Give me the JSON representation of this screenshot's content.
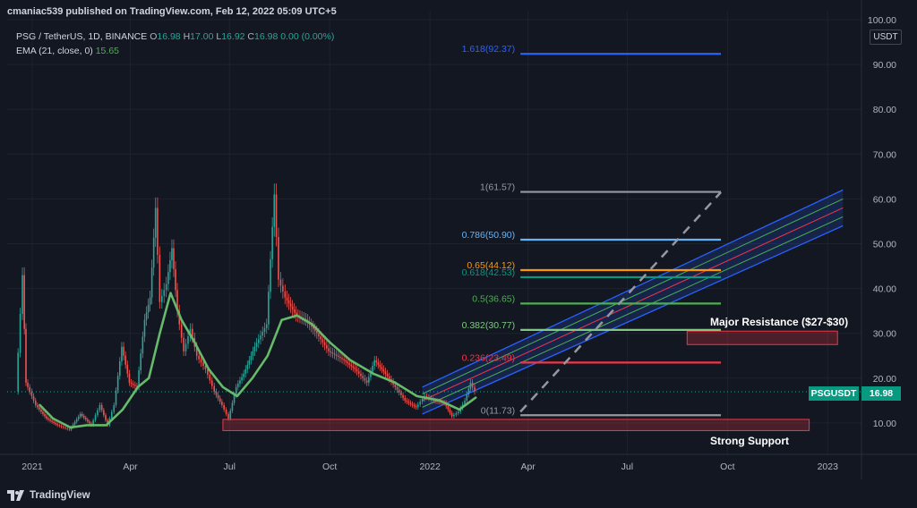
{
  "header": {
    "publisher": "cmaniac539 published on TradingView.com, Feb 12, 2022 05:09 UTC+5"
  },
  "legend": {
    "symbol": "PSG / TetherUS, 1D, BINANCE",
    "o_label": "O",
    "o_val": "16.98",
    "h_label": "H",
    "h_val": "17.00",
    "l_label": "L",
    "l_val": "16.92",
    "c_label": "C",
    "c_val": "16.98",
    "chg": "0.00 (0.00%)",
    "ema_label": "EMA (21, close, 0)",
    "ema_val": "15.65"
  },
  "currency_button": "USDT",
  "price_tag": {
    "symbol": "PSGUSDT",
    "value": "16.98"
  },
  "footer": {
    "brand": "TradingView"
  },
  "annotations": {
    "resistance": "Major Resistance ($27-$30)",
    "support": "Strong Support"
  },
  "chart_data": {
    "type": "candlestick",
    "yticks": [
      10,
      20,
      30,
      40,
      50,
      60,
      70,
      80,
      90,
      100
    ],
    "ytick_labels": [
      "10.00",
      "20.00",
      "30.00",
      "40.00",
      "50.00",
      "60.00",
      "70.00",
      "80.00",
      "90.00",
      "100.00"
    ],
    "ylim": [
      3,
      100
    ],
    "xticks": [
      {
        "label": "2021",
        "date": "2021-01-01"
      },
      {
        "label": "Apr",
        "date": "2021-04-01"
      },
      {
        "label": "Jul",
        "date": "2021-07-01"
      },
      {
        "label": "Oct",
        "date": "2021-10-01"
      },
      {
        "label": "2022",
        "date": "2022-01-01"
      },
      {
        "label": "Apr",
        "date": "2022-04-01"
      },
      {
        "label": "Jul",
        "date": "2022-07-01"
      },
      {
        "label": "Oct",
        "date": "2022-10-01"
      },
      {
        "label": "2023",
        "date": "2023-01-01"
      }
    ],
    "price_series": [
      {
        "date": "2020-12-18",
        "price": 17
      },
      {
        "date": "2020-12-24",
        "price": 43
      },
      {
        "date": "2020-12-27",
        "price": 19
      },
      {
        "date": "2021-01-05",
        "price": 14
      },
      {
        "date": "2021-01-15",
        "price": 11
      },
      {
        "date": "2021-01-25",
        "price": 9.5
      },
      {
        "date": "2021-02-05",
        "price": 8.5
      },
      {
        "date": "2021-02-15",
        "price": 12
      },
      {
        "date": "2021-02-25",
        "price": 9.5
      },
      {
        "date": "2021-03-05",
        "price": 14
      },
      {
        "date": "2021-03-12",
        "price": 9.5
      },
      {
        "date": "2021-03-18",
        "price": 14
      },
      {
        "date": "2021-03-25",
        "price": 27
      },
      {
        "date": "2021-04-01",
        "price": 19
      },
      {
        "date": "2021-04-08",
        "price": 18
      },
      {
        "date": "2021-04-15",
        "price": 33
      },
      {
        "date": "2021-04-20",
        "price": 38
      },
      {
        "date": "2021-04-25",
        "price": 58
      },
      {
        "date": "2021-04-29",
        "price": 37
      },
      {
        "date": "2021-05-05",
        "price": 41
      },
      {
        "date": "2021-05-10",
        "price": 49
      },
      {
        "date": "2021-05-15",
        "price": 35
      },
      {
        "date": "2021-05-21",
        "price": 26
      },
      {
        "date": "2021-05-27",
        "price": 31
      },
      {
        "date": "2021-06-02",
        "price": 25
      },
      {
        "date": "2021-06-10",
        "price": 22
      },
      {
        "date": "2021-06-18",
        "price": 17
      },
      {
        "date": "2021-06-25",
        "price": 14
      },
      {
        "date": "2021-07-01",
        "price": 11
      },
      {
        "date": "2021-07-08",
        "price": 18
      },
      {
        "date": "2021-07-15",
        "price": 21
      },
      {
        "date": "2021-07-25",
        "price": 27
      },
      {
        "date": "2021-08-05",
        "price": 32
      },
      {
        "date": "2021-08-12",
        "price": 61
      },
      {
        "date": "2021-08-16",
        "price": 42
      },
      {
        "date": "2021-08-22",
        "price": 38
      },
      {
        "date": "2021-09-01",
        "price": 34
      },
      {
        "date": "2021-09-10",
        "price": 33
      },
      {
        "date": "2021-09-20",
        "price": 30
      },
      {
        "date": "2021-10-01",
        "price": 26
      },
      {
        "date": "2021-10-15",
        "price": 24
      },
      {
        "date": "2021-10-25",
        "price": 22
      },
      {
        "date": "2021-11-05",
        "price": 19
      },
      {
        "date": "2021-11-12",
        "price": 24
      },
      {
        "date": "2021-11-22",
        "price": 21
      },
      {
        "date": "2021-12-01",
        "price": 18
      },
      {
        "date": "2021-12-10",
        "price": 15
      },
      {
        "date": "2021-12-20",
        "price": 13.5
      },
      {
        "date": "2021-12-28",
        "price": 16
      },
      {
        "date": "2022-01-05",
        "price": 15
      },
      {
        "date": "2022-01-15",
        "price": 14.5
      },
      {
        "date": "2022-01-22",
        "price": 11.5
      },
      {
        "date": "2022-01-28",
        "price": 12.5
      },
      {
        "date": "2022-02-03",
        "price": 15
      },
      {
        "date": "2022-02-08",
        "price": 19
      },
      {
        "date": "2022-02-12",
        "price": 16.98
      }
    ],
    "ema_series": [
      {
        "date": "2021-01-08",
        "price": 14
      },
      {
        "date": "2021-01-20",
        "price": 11
      },
      {
        "date": "2021-02-05",
        "price": 9
      },
      {
        "date": "2021-02-20",
        "price": 9.5
      },
      {
        "date": "2021-03-10",
        "price": 9.5
      },
      {
        "date": "2021-03-25",
        "price": 13
      },
      {
        "date": "2021-04-08",
        "price": 18
      },
      {
        "date": "2021-04-18",
        "price": 20
      },
      {
        "date": "2021-04-28",
        "price": 30
      },
      {
        "date": "2021-05-08",
        "price": 39
      },
      {
        "date": "2021-05-18",
        "price": 33
      },
      {
        "date": "2021-05-30",
        "price": 28
      },
      {
        "date": "2021-06-12",
        "price": 22
      },
      {
        "date": "2021-06-25",
        "price": 18
      },
      {
        "date": "2021-07-08",
        "price": 16
      },
      {
        "date": "2021-07-22",
        "price": 20
      },
      {
        "date": "2021-08-05",
        "price": 25
      },
      {
        "date": "2021-08-18",
        "price": 33
      },
      {
        "date": "2021-09-01",
        "price": 34
      },
      {
        "date": "2021-09-15",
        "price": 32
      },
      {
        "date": "2021-10-01",
        "price": 28
      },
      {
        "date": "2021-10-20",
        "price": 24
      },
      {
        "date": "2021-11-10",
        "price": 21
      },
      {
        "date": "2021-11-30",
        "price": 19
      },
      {
        "date": "2021-12-20",
        "price": 16
      },
      {
        "date": "2022-01-10",
        "price": 15
      },
      {
        "date": "2022-01-28",
        "price": 13
      },
      {
        "date": "2022-02-12",
        "price": 15.65
      }
    ],
    "fibonacci": {
      "start_date": "2022-03-25",
      "end_date": "2022-09-25",
      "levels": [
        {
          "label": "0(11.73)",
          "price": 11.73,
          "color": "#9598a1"
        },
        {
          "label": "0.236(23.49)",
          "price": 23.49,
          "color": "#f23645"
        },
        {
          "label": "0.382(30.77)",
          "price": 30.77,
          "color": "#81c784"
        },
        {
          "label": "0.5(36.65)",
          "price": 36.65,
          "color": "#4caf50"
        },
        {
          "label": "0.618(42.53)",
          "price": 42.53,
          "color": "#089981"
        },
        {
          "label": "0.65(44.12)",
          "price": 44.12,
          "color": "#ff9800"
        },
        {
          "label": "0.786(50.90)",
          "price": 50.9,
          "color": "#64b5f6"
        },
        {
          "label": "1(61.57)",
          "price": 61.57,
          "color": "#9598a1"
        },
        {
          "label": "1.618(92.37)",
          "price": 92.37,
          "color": "#2962ff"
        }
      ]
    },
    "trend_projection": {
      "from_date": "2022-03-25",
      "from_price": 12.5,
      "to_date": "2022-09-25",
      "to_price": 61.5
    },
    "channel": {
      "start_date": "2021-12-25",
      "end_date": "2023-01-15",
      "lower_start": 12,
      "upper_start": 18,
      "lower_end": 54,
      "upper_end": 62
    },
    "zones": [
      {
        "name": "resistance",
        "from_date": "2022-08-25",
        "to_date": "2023-01-10",
        "low": 27.5,
        "high": 30.5
      },
      {
        "name": "support",
        "from_date": "2021-06-25",
        "to_date": "2022-12-15",
        "low": 8.3,
        "high": 10.8
      }
    ],
    "last_price": 16.98,
    "colors": {
      "up": "#26a69a",
      "down": "#ef5350",
      "ema": "#66bb6a",
      "channel": "#2962ff"
    }
  }
}
